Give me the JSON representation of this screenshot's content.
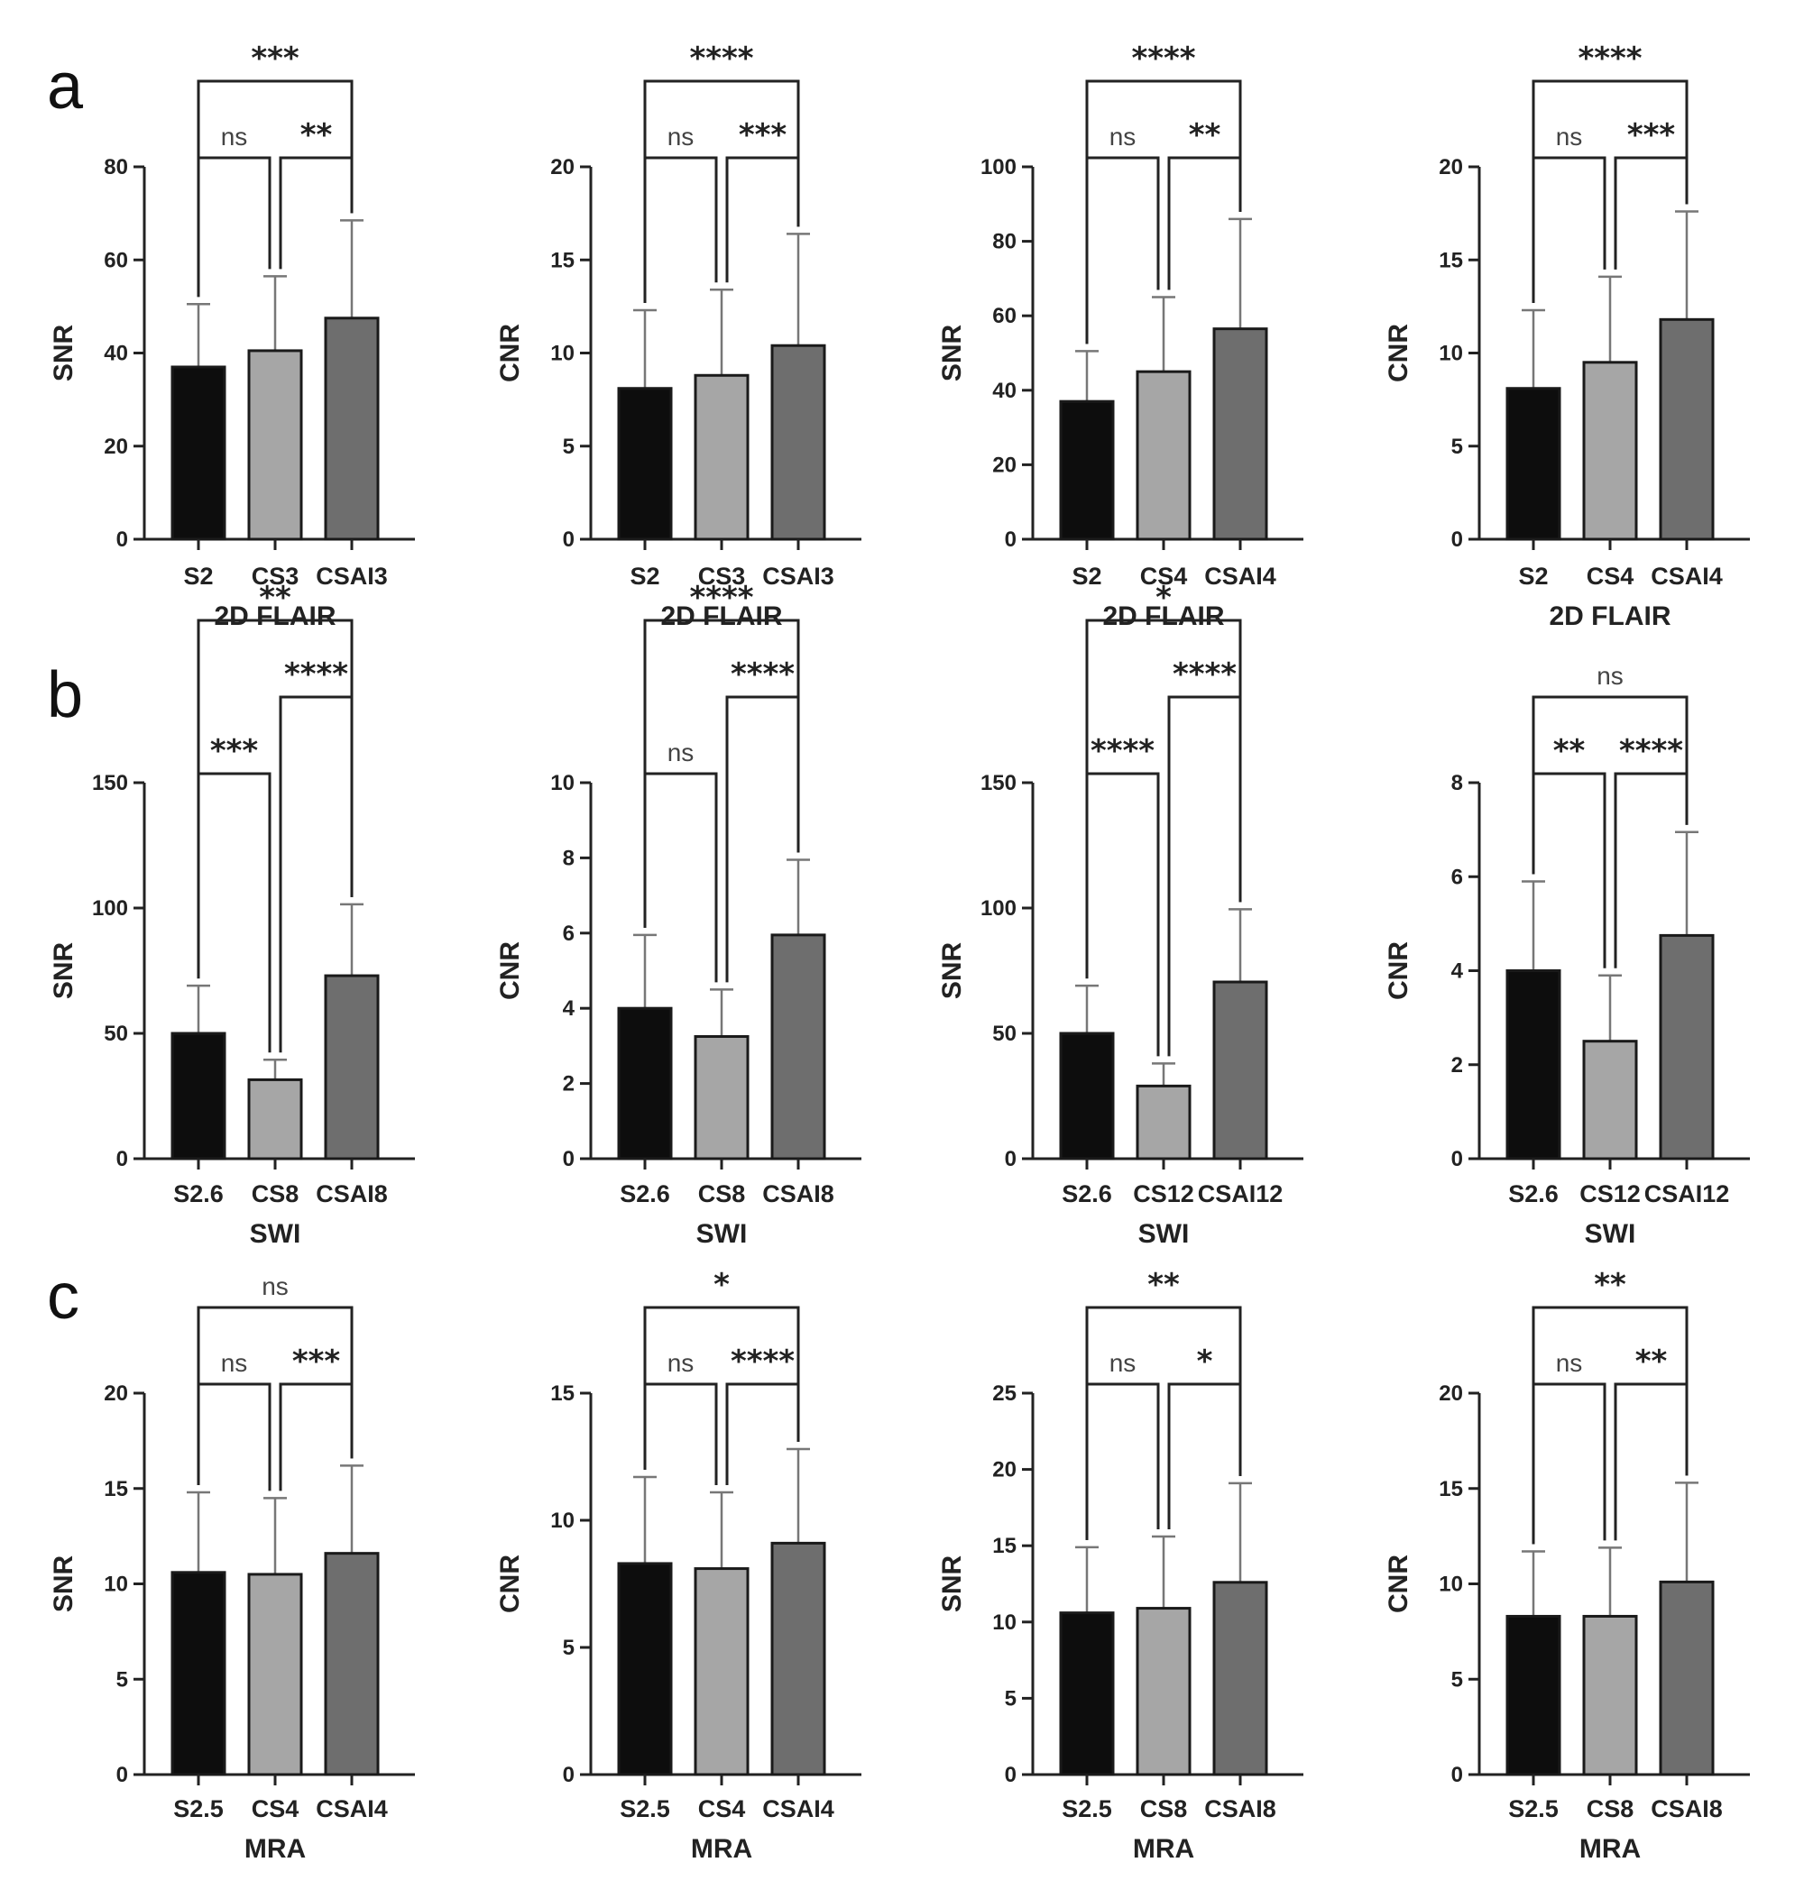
{
  "panel_labels": [
    "a",
    "b",
    "c"
  ],
  "colors": {
    "bar": [
      "#0d0d0d",
      "#a6a6a6",
      "#6e6e6e"
    ],
    "stroke": "#1a1a1a",
    "err": "#777777",
    "axis": "#222222"
  },
  "chart_data": [
    {
      "type": "bar",
      "row": 0,
      "col": 0,
      "panel_label": "a",
      "title": "",
      "ylabel": "SNR",
      "xlabel": "2D FLAIR",
      "categories": [
        "S2",
        "CS3",
        "CSAI3"
      ],
      "values": [
        37,
        40.5,
        47.5
      ],
      "errors": [
        13.5,
        16,
        21
      ],
      "ylim": [
        0,
        80
      ],
      "yticks": [
        "0",
        "20",
        "40",
        "60",
        "80"
      ],
      "sig": {
        "a": {
          "text": "ns",
          "level": 1
        },
        "b": {
          "text": "**",
          "level": 1
        },
        "c": {
          "text": "***",
          "level": 2
        }
      }
    },
    {
      "type": "bar",
      "row": 0,
      "col": 1,
      "title": "",
      "ylabel": "CNR",
      "xlabel": "2D FLAIR",
      "categories": [
        "S2",
        "CS3",
        "CSAI3"
      ],
      "values": [
        8.1,
        8.8,
        10.4
      ],
      "errors": [
        4.2,
        4.6,
        6
      ],
      "ylim": [
        0,
        20
      ],
      "yticks": [
        "0",
        "5",
        "10",
        "15",
        "20"
      ],
      "sig": {
        "a": {
          "text": "ns",
          "level": 1
        },
        "b": {
          "text": "***",
          "level": 1
        },
        "c": {
          "text": "****",
          "level": 2
        }
      }
    },
    {
      "type": "bar",
      "row": 0,
      "col": 2,
      "title": "",
      "ylabel": "SNR",
      "xlabel": "2D FLAIR",
      "categories": [
        "S2",
        "CS4",
        "CSAI4"
      ],
      "values": [
        37,
        45,
        56.5
      ],
      "errors": [
        13.5,
        20,
        29.5
      ],
      "ylim": [
        0,
        100
      ],
      "yticks": [
        "0",
        "20",
        "40",
        "60",
        "80",
        "100"
      ],
      "sig": {
        "a": {
          "text": "ns",
          "level": 1
        },
        "b": {
          "text": "**",
          "level": 1
        },
        "c": {
          "text": "****",
          "level": 2
        }
      }
    },
    {
      "type": "bar",
      "row": 0,
      "col": 3,
      "title": "",
      "ylabel": "CNR",
      "xlabel": "2D FLAIR",
      "categories": [
        "S2",
        "CS4",
        "CSAI4"
      ],
      "values": [
        8.1,
        9.5,
        11.8
      ],
      "errors": [
        4.2,
        4.6,
        5.8
      ],
      "ylim": [
        0,
        20
      ],
      "yticks": [
        "0",
        "5",
        "10",
        "15",
        "20"
      ],
      "sig": {
        "a": {
          "text": "ns",
          "level": 1
        },
        "b": {
          "text": "***",
          "level": 1
        },
        "c": {
          "text": "****",
          "level": 2
        }
      }
    },
    {
      "type": "bar",
      "row": 1,
      "col": 0,
      "panel_label": "b",
      "title": "",
      "ylabel": "SNR",
      "xlabel": "SWI",
      "categories": [
        "S2.6",
        "CS8",
        "CSAI8"
      ],
      "values": [
        50,
        31.5,
        73
      ],
      "errors": [
        19,
        8,
        28.5
      ],
      "ylim": [
        0,
        150
      ],
      "yticks": [
        "0",
        "50",
        "100",
        "150"
      ],
      "sig": {
        "a": {
          "text": "***",
          "level": 1
        },
        "b": {
          "text": "****",
          "level": 2
        },
        "c": {
          "text": "**",
          "level": 3
        }
      }
    },
    {
      "type": "bar",
      "row": 1,
      "col": 1,
      "title": "",
      "ylabel": "CNR",
      "xlabel": "SWI",
      "categories": [
        "S2.6",
        "CS8",
        "CSAI8"
      ],
      "values": [
        4,
        3.25,
        5.95
      ],
      "errors": [
        1.95,
        1.25,
        2
      ],
      "ylim": [
        0,
        10
      ],
      "yticks": [
        "0",
        "2",
        "4",
        "6",
        "8",
        "10"
      ],
      "sig": {
        "a": {
          "text": "ns",
          "level": 1
        },
        "b": {
          "text": "****",
          "level": 2
        },
        "c": {
          "text": "****",
          "level": 3
        }
      }
    },
    {
      "type": "bar",
      "row": 1,
      "col": 2,
      "title": "",
      "ylabel": "SNR",
      "xlabel": "SWI",
      "categories": [
        "S2.6",
        "CS12",
        "CSAI12"
      ],
      "values": [
        50,
        29,
        70.5
      ],
      "errors": [
        19,
        9,
        29
      ],
      "ylim": [
        0,
        150
      ],
      "yticks": [
        "0",
        "50",
        "100",
        "150"
      ],
      "sig": {
        "a": {
          "text": "****",
          "level": 1
        },
        "b": {
          "text": "****",
          "level": 2
        },
        "c": {
          "text": "*",
          "level": 3
        }
      }
    },
    {
      "type": "bar",
      "row": 1,
      "col": 3,
      "title": "",
      "ylabel": "CNR",
      "xlabel": "SWI",
      "categories": [
        "S2.6",
        "CS12",
        "CSAI12"
      ],
      "values": [
        4,
        2.5,
        4.75
      ],
      "errors": [
        1.9,
        1.4,
        2.2
      ],
      "ylim": [
        0,
        8
      ],
      "yticks": [
        "0",
        "2",
        "4",
        "6",
        "8"
      ],
      "sig": {
        "a": {
          "text": "**",
          "level": 1
        },
        "b": {
          "text": "****",
          "level": 1
        },
        "c": {
          "text": "ns",
          "level": 2
        }
      }
    },
    {
      "type": "bar",
      "row": 2,
      "col": 0,
      "panel_label": "c",
      "title": "",
      "ylabel": "SNR",
      "xlabel": "MRA",
      "categories": [
        "S2.5",
        "CS4",
        "CSAI4"
      ],
      "values": [
        10.6,
        10.5,
        11.6
      ],
      "errors": [
        4.2,
        4,
        4.6
      ],
      "ylim": [
        0,
        20
      ],
      "yticks": [
        "0",
        "5",
        "10",
        "15",
        "20"
      ],
      "sig": {
        "a": {
          "text": "ns",
          "level": 1
        },
        "b": {
          "text": "***",
          "level": 1
        },
        "c": {
          "text": "ns",
          "level": 2
        }
      }
    },
    {
      "type": "bar",
      "row": 2,
      "col": 1,
      "title": "",
      "ylabel": "CNR",
      "xlabel": "MRA",
      "categories": [
        "S2.5",
        "CS4",
        "CSAI4"
      ],
      "values": [
        8.3,
        8.1,
        9.1
      ],
      "errors": [
        3.4,
        3,
        3.7
      ],
      "ylim": [
        0,
        15
      ],
      "yticks": [
        "0",
        "5",
        "10",
        "15"
      ],
      "sig": {
        "a": {
          "text": "ns",
          "level": 1
        },
        "b": {
          "text": "****",
          "level": 1
        },
        "c": {
          "text": "*",
          "level": 2
        }
      }
    },
    {
      "type": "bar",
      "row": 2,
      "col": 2,
      "title": "",
      "ylabel": "SNR",
      "xlabel": "MRA",
      "categories": [
        "S2.5",
        "CS8",
        "CSAI8"
      ],
      "values": [
        10.6,
        10.9,
        12.6
      ],
      "errors": [
        4.3,
        4.7,
        6.5
      ],
      "ylim": [
        0,
        25
      ],
      "yticks": [
        "0",
        "5",
        "10",
        "15",
        "20",
        "25"
      ],
      "sig": {
        "a": {
          "text": "ns",
          "level": 1
        },
        "b": {
          "text": "*",
          "level": 1
        },
        "c": {
          "text": "**",
          "level": 2
        }
      }
    },
    {
      "type": "bar",
      "row": 2,
      "col": 3,
      "title": "",
      "ylabel": "CNR",
      "xlabel": "MRA",
      "categories": [
        "S2.5",
        "CS8",
        "CSAI8"
      ],
      "values": [
        8.3,
        8.3,
        10.1
      ],
      "errors": [
        3.4,
        3.6,
        5.2
      ],
      "ylim": [
        0,
        20
      ],
      "yticks": [
        "0",
        "5",
        "10",
        "15",
        "20"
      ],
      "sig": {
        "a": {
          "text": "ns",
          "level": 1
        },
        "b": {
          "text": "**",
          "level": 1
        },
        "c": {
          "text": "**",
          "level": 2
        }
      }
    }
  ]
}
